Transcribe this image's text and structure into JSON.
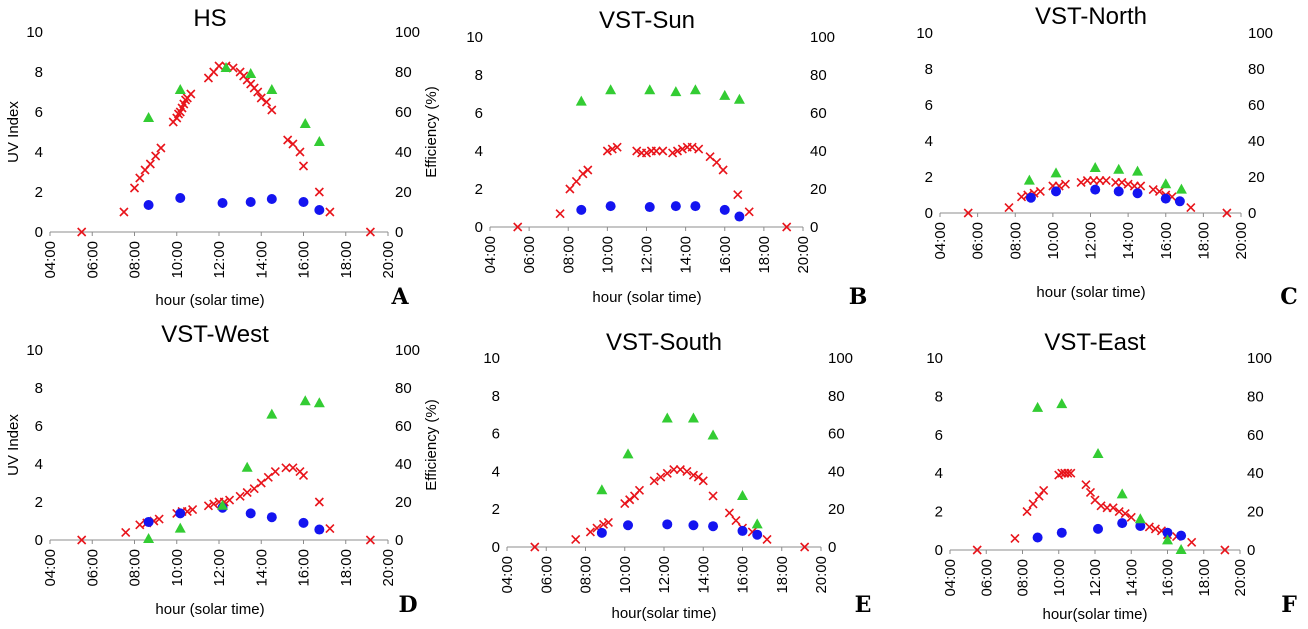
{
  "figure": {
    "series_colors": {
      "uv_index": "#e8141b",
      "efficiency_blue": "#1414f0",
      "efficiency_green": "#33cc33"
    },
    "series_markers": {
      "uv_index": "cross",
      "efficiency_blue": "circle",
      "efficiency_green": "triangle"
    }
  },
  "chart_data": [
    {
      "type": "scatter",
      "title": "HS",
      "panel_letter": "A",
      "xlabel": "hour (solar time)",
      "ylabel": "UV Index",
      "y2label": "Efficiency (%)",
      "xlim": [
        "04:00",
        "20:00"
      ],
      "xticks": [
        "04:00",
        "06:00",
        "08:00",
        "10:00",
        "12:00",
        "14:00",
        "16:00",
        "18:00",
        "20:00"
      ],
      "ylim": [
        0,
        10
      ],
      "yticks": [
        "0",
        "2",
        "4",
        "6",
        "8",
        "10"
      ],
      "y2lim": [
        0,
        100
      ],
      "y2ticks": [
        "0",
        "20",
        "40",
        "60",
        "80",
        "100"
      ],
      "grid": false,
      "series": [
        {
          "axis": "y",
          "marker": "cross",
          "x": [
            "05:30",
            "07:30",
            "08:00",
            "08:15",
            "08:30",
            "08:45",
            "09:00",
            "09:15",
            "09:50",
            "10:00",
            "10:05",
            "10:10",
            "10:15",
            "10:20",
            "10:25",
            "10:30",
            "10:40",
            "11:30",
            "11:45",
            "12:00",
            "12:20",
            "12:40",
            "13:00",
            "13:10",
            "13:20",
            "13:30",
            "13:40",
            "13:50",
            "14:00",
            "14:15",
            "14:30",
            "15:15",
            "15:30",
            "15:50",
            "16:00",
            "16:45",
            "17:15",
            "19:10"
          ],
          "values": [
            0,
            1,
            2.2,
            2.7,
            3.1,
            3.4,
            3.8,
            4.2,
            5.5,
            5.7,
            5.9,
            6.0,
            6.2,
            6.4,
            6.6,
            6.7,
            6.9,
            7.7,
            8.0,
            8.3,
            8.3,
            8.2,
            8.0,
            7.8,
            7.6,
            7.4,
            7.2,
            7.0,
            6.7,
            6.5,
            6.1,
            4.6,
            4.4,
            4.0,
            3.3,
            2.0,
            1.0,
            0
          ]
        },
        {
          "axis": "y2",
          "marker": "circle",
          "x": [
            "08:40",
            "10:10",
            "12:10",
            "13:30",
            "14:30",
            "16:00",
            "16:45"
          ],
          "values": [
            13.5,
            17,
            14.5,
            15,
            16.5,
            15,
            11
          ]
        },
        {
          "axis": "y2",
          "marker": "triangle",
          "x": [
            "08:40",
            "10:10",
            "12:20",
            "13:30",
            "14:30",
            "16:05",
            "16:45"
          ],
          "values": [
            57,
            71,
            82,
            79,
            71,
            54,
            45
          ]
        }
      ]
    },
    {
      "type": "scatter",
      "title": "VST-Sun",
      "panel_letter": "B",
      "xlabel": "hour (solar time)",
      "ylabel": "",
      "y2label": "",
      "xlim": [
        "04:00",
        "20:00"
      ],
      "xticks": [
        "04:00",
        "06:00",
        "08:00",
        "10:00",
        "12:00",
        "14:00",
        "16:00",
        "18:00",
        "20:00"
      ],
      "ylim": [
        0,
        10
      ],
      "yticks": [
        "0",
        "2",
        "4",
        "6",
        "8",
        "10"
      ],
      "y2lim": [
        0,
        100
      ],
      "y2ticks": [
        "0",
        "20",
        "40",
        "60",
        "80",
        "100"
      ],
      "grid": false,
      "series": [
        {
          "axis": "y",
          "marker": "cross",
          "x": [
            "05:25",
            "07:35",
            "08:05",
            "08:25",
            "08:45",
            "09:00",
            "10:00",
            "10:15",
            "10:30",
            "11:30",
            "11:45",
            "12:00",
            "12:15",
            "12:30",
            "12:50",
            "13:20",
            "13:35",
            "13:50",
            "14:05",
            "14:20",
            "14:40",
            "15:15",
            "15:35",
            "15:55",
            "16:40",
            "17:15",
            "19:10"
          ],
          "values": [
            0,
            0.7,
            2.0,
            2.4,
            2.8,
            3.0,
            4.0,
            4.1,
            4.2,
            4.0,
            3.9,
            3.9,
            4.0,
            4.0,
            4.0,
            3.9,
            4.0,
            4.1,
            4.2,
            4.2,
            4.1,
            3.7,
            3.4,
            3.0,
            1.7,
            0.8,
            0
          ]
        },
        {
          "axis": "y2",
          "marker": "circle",
          "x": [
            "08:40",
            "10:10",
            "12:10",
            "13:30",
            "14:30",
            "16:00",
            "16:45"
          ],
          "values": [
            9,
            11,
            10.5,
            11,
            11,
            9,
            5.5
          ]
        },
        {
          "axis": "y2",
          "marker": "triangle",
          "x": [
            "08:40",
            "10:10",
            "12:10",
            "13:30",
            "14:30",
            "16:00",
            "16:45"
          ],
          "values": [
            66,
            72,
            72,
            71,
            72,
            69,
            67
          ]
        }
      ]
    },
    {
      "type": "scatter",
      "title": "VST-North",
      "panel_letter": "C",
      "xlabel": "hour (solar time)",
      "ylabel": "",
      "y2label": "",
      "xlim": [
        "04:00",
        "20:00"
      ],
      "xticks": [
        "04:00",
        "06:00",
        "08:00",
        "10:00",
        "12:00",
        "14:00",
        "16:00",
        "18:00",
        "20:00"
      ],
      "ylim": [
        0,
        10
      ],
      "yticks": [
        "0",
        "2",
        "4",
        "6",
        "8",
        "10"
      ],
      "y2lim": [
        0,
        100
      ],
      "y2ticks": [
        "0",
        "20",
        "40",
        "60",
        "80",
        "100"
      ],
      "grid": false,
      "series": [
        {
          "axis": "y",
          "marker": "cross",
          "x": [
            "05:30",
            "07:40",
            "08:20",
            "08:40",
            "09:00",
            "09:20",
            "10:00",
            "10:20",
            "10:40",
            "11:30",
            "11:50",
            "12:10",
            "12:30",
            "12:50",
            "13:20",
            "13:40",
            "14:00",
            "14:20",
            "14:40",
            "15:20",
            "15:40",
            "16:00",
            "16:20",
            "17:20",
            "19:15"
          ],
          "values": [
            0,
            0.3,
            0.9,
            1.0,
            1.1,
            1.2,
            1.5,
            1.5,
            1.6,
            1.7,
            1.8,
            1.8,
            1.8,
            1.8,
            1.7,
            1.7,
            1.6,
            1.5,
            1.5,
            1.3,
            1.2,
            1.0,
            0.9,
            0.3,
            0
          ]
        },
        {
          "axis": "y2",
          "marker": "circle",
          "x": [
            "08:50",
            "10:10",
            "12:15",
            "13:30",
            "14:30",
            "16:00",
            "16:45"
          ],
          "values": [
            8.5,
            12,
            13,
            12,
            11,
            8,
            6.5
          ]
        },
        {
          "axis": "y2",
          "marker": "triangle",
          "x": [
            "08:45",
            "10:10",
            "12:15",
            "13:30",
            "14:30",
            "16:00",
            "16:50"
          ],
          "values": [
            18,
            22,
            25,
            24,
            23,
            16,
            13
          ]
        }
      ]
    },
    {
      "type": "scatter",
      "title": "VST-West",
      "panel_letter": "D",
      "xlabel": "hour (solar time)",
      "ylabel": "UV Index",
      "y2label": "Efficiency (%)",
      "xlim": [
        "04:00",
        "20:00"
      ],
      "xticks": [
        "04:00",
        "06:00",
        "08:00",
        "10:00",
        "12:00",
        "14:00",
        "16:00",
        "18:00",
        "20:00"
      ],
      "ylim": [
        0,
        10
      ],
      "yticks": [
        "0",
        "2",
        "4",
        "6",
        "8",
        "10"
      ],
      "y2lim": [
        0,
        100
      ],
      "y2ticks": [
        "0",
        "20",
        "40",
        "60",
        "80",
        "100"
      ],
      "grid": false,
      "series": [
        {
          "axis": "y",
          "marker": "cross",
          "x": [
            "05:30",
            "07:35",
            "08:15",
            "08:35",
            "08:55",
            "09:10",
            "10:00",
            "10:15",
            "10:30",
            "10:45",
            "11:30",
            "11:45",
            "12:00",
            "12:15",
            "12:30",
            "13:00",
            "13:20",
            "13:40",
            "14:00",
            "14:20",
            "14:40",
            "15:10",
            "15:30",
            "15:50",
            "16:00",
            "16:45",
            "17:15",
            "19:10"
          ],
          "values": [
            0,
            0.4,
            0.8,
            0.9,
            1.0,
            1.1,
            1.4,
            1.5,
            1.5,
            1.6,
            1.8,
            1.9,
            2.0,
            2.0,
            2.1,
            2.3,
            2.5,
            2.7,
            3.0,
            3.3,
            3.6,
            3.8,
            3.8,
            3.6,
            3.4,
            2.0,
            0.6,
            0
          ]
        },
        {
          "axis": "y2",
          "marker": "circle",
          "x": [
            "08:40",
            "10:10",
            "12:10",
            "13:30",
            "14:30",
            "16:00",
            "16:45"
          ],
          "values": [
            9.5,
            14,
            17,
            14,
            12,
            9,
            5.5
          ]
        },
        {
          "axis": "y2",
          "marker": "triangle",
          "x": [
            "08:40",
            "10:10",
            "12:10",
            "13:20",
            "14:30",
            "16:05",
            "16:45"
          ],
          "values": [
            0.5,
            6,
            18,
            38,
            66,
            73,
            72
          ]
        }
      ]
    },
    {
      "type": "scatter",
      "title": "VST-South",
      "panel_letter": "E",
      "xlabel": "hour(solar time)",
      "ylabel": "",
      "y2label": "",
      "xlim": [
        "04:00",
        "20:00"
      ],
      "xticks": [
        "04:00",
        "06:00",
        "08:00",
        "10:00",
        "12:00",
        "14:00",
        "16:00",
        "18:00",
        "20:00"
      ],
      "ylim": [
        0,
        10
      ],
      "yticks": [
        "0",
        "2",
        "4",
        "6",
        "8",
        "10"
      ],
      "y2lim": [
        0,
        100
      ],
      "y2ticks": [
        "0",
        "20",
        "40",
        "60",
        "80",
        "100"
      ],
      "grid": false,
      "series": [
        {
          "axis": "y",
          "marker": "cross",
          "x": [
            "05:25",
            "07:30",
            "08:15",
            "08:35",
            "08:55",
            "09:10",
            "10:00",
            "10:15",
            "10:30",
            "10:45",
            "11:30",
            "11:50",
            "12:10",
            "12:30",
            "12:50",
            "13:10",
            "13:30",
            "13:45",
            "14:00",
            "14:30",
            "15:20",
            "15:40",
            "16:00",
            "16:30",
            "17:15",
            "19:10"
          ],
          "values": [
            0,
            0.4,
            0.8,
            1.0,
            1.2,
            1.3,
            2.3,
            2.5,
            2.7,
            3.0,
            3.5,
            3.7,
            3.9,
            4.1,
            4.1,
            4.0,
            3.8,
            3.7,
            3.5,
            2.7,
            1.8,
            1.4,
            1.0,
            0.8,
            0.4,
            0
          ]
        },
        {
          "axis": "y2",
          "marker": "circle",
          "x": [
            "08:50",
            "10:10",
            "12:10",
            "13:30",
            "14:30",
            "16:00",
            "16:45"
          ],
          "values": [
            7.5,
            11.5,
            12,
            11.5,
            11,
            8.5,
            6.5
          ]
        },
        {
          "axis": "y2",
          "marker": "triangle",
          "x": [
            "08:50",
            "10:10",
            "12:10",
            "13:30",
            "14:30",
            "16:00",
            "16:45"
          ],
          "values": [
            30,
            49,
            68,
            68,
            59,
            27,
            12
          ]
        }
      ]
    },
    {
      "type": "scatter",
      "title": "VST-East",
      "panel_letter": "F",
      "xlabel": "hour(solar time)",
      "ylabel": "",
      "y2label": "",
      "xlim": [
        "04:00",
        "20:00"
      ],
      "xticks": [
        "04:00",
        "06:00",
        "08:00",
        "10:00",
        "12:00",
        "14:00",
        "16:00",
        "18:00",
        "20:00"
      ],
      "ylim": [
        0,
        10
      ],
      "yticks": [
        "0",
        "2",
        "4",
        "6",
        "8",
        "10"
      ],
      "y2lim": [
        0,
        100
      ],
      "y2ticks": [
        "0",
        "20",
        "40",
        "60",
        "80",
        "100"
      ],
      "grid": false,
      "series": [
        {
          "axis": "y",
          "marker": "cross",
          "x": [
            "05:30",
            "07:35",
            "08:15",
            "08:35",
            "08:55",
            "09:10",
            "10:00",
            "10:10",
            "10:20",
            "10:30",
            "10:40",
            "11:30",
            "11:45",
            "12:00",
            "12:20",
            "12:40",
            "13:00",
            "13:20",
            "13:40",
            "14:00",
            "15:00",
            "15:20",
            "15:40",
            "16:00",
            "16:30",
            "17:20",
            "19:10"
          ],
          "values": [
            0,
            0.6,
            2.0,
            2.4,
            2.8,
            3.1,
            3.9,
            4.0,
            4.0,
            4.0,
            4.0,
            3.4,
            3.0,
            2.6,
            2.3,
            2.2,
            2.2,
            2.0,
            1.9,
            1.7,
            1.2,
            1.1,
            1.0,
            0.8,
            0.7,
            0.4,
            0
          ]
        },
        {
          "axis": "y2",
          "marker": "circle",
          "x": [
            "08:50",
            "10:10",
            "12:10",
            "13:30",
            "14:30",
            "16:00",
            "16:45"
          ],
          "values": [
            6.5,
            9,
            11,
            14,
            12.5,
            9,
            7.5
          ]
        },
        {
          "axis": "y2",
          "marker": "triangle",
          "x": [
            "08:50",
            "10:10",
            "12:10",
            "13:30",
            "14:30",
            "16:00",
            "16:45"
          ],
          "values": [
            74,
            76,
            50,
            29,
            16,
            5,
            0
          ]
        }
      ]
    }
  ]
}
